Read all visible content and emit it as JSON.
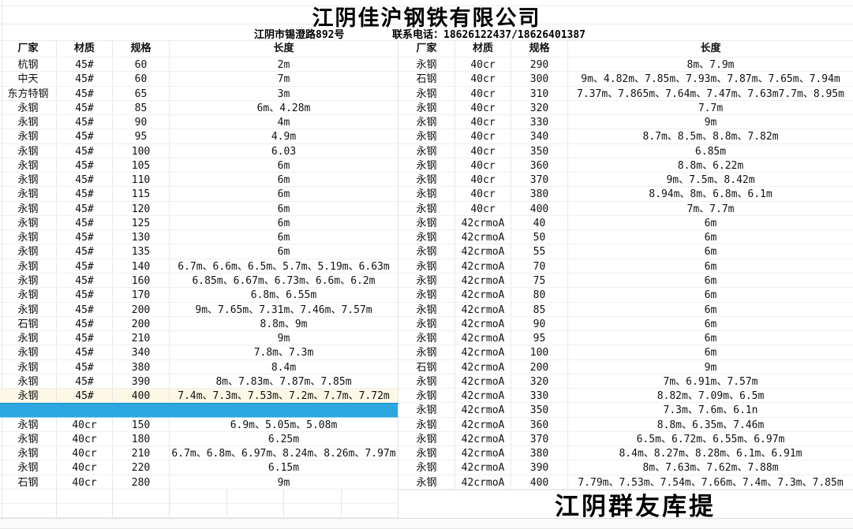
{
  "header": {
    "title": "江阴佳沪钢铁有限公司",
    "address": "江阴市锡澄路892号",
    "phone": "联系电话：18626122437/18626401387"
  },
  "columns": [
    "厂家",
    "材质",
    "规格",
    "长度"
  ],
  "colors": {
    "blue_highlight": "#2AA7DF",
    "cream_highlight": "#FDF7E6"
  },
  "left_table": {
    "row_styles": {
      "23": "cream",
      "24": "blue"
    },
    "footer_empty_rows": 2,
    "rows": [
      [
        "杭钢",
        "45#",
        "60",
        "2m"
      ],
      [
        "中天",
        "45#",
        "60",
        "7m"
      ],
      [
        "东方特钢",
        "45#",
        "65",
        "3m"
      ],
      [
        "永钢",
        "45#",
        "85",
        "6m、4.28m"
      ],
      [
        "永钢",
        "45#",
        "90",
        "4m"
      ],
      [
        "永钢",
        "45#",
        "95",
        "4.9m"
      ],
      [
        "永钢",
        "45#",
        "100",
        "6.03"
      ],
      [
        "永钢",
        "45#",
        "105",
        "6m"
      ],
      [
        "永钢",
        "45#",
        "110",
        "6m"
      ],
      [
        "永钢",
        "45#",
        "115",
        "6m"
      ],
      [
        "永钢",
        "45#",
        "120",
        "6m"
      ],
      [
        "永钢",
        "45#",
        "125",
        "6m"
      ],
      [
        "永钢",
        "45#",
        "130",
        "6m"
      ],
      [
        "永钢",
        "45#",
        "135",
        "6m"
      ],
      [
        "永钢",
        "45#",
        "140",
        "6.7m、6.6m、6.5m、5.7m、5.19m、6.63m"
      ],
      [
        "永钢",
        "45#",
        "160",
        "6.85m、6.67m、6.73m、6.6m、6.2m"
      ],
      [
        "永钢",
        "45#",
        "170",
        "6.8m、6.55m"
      ],
      [
        "永钢",
        "45#",
        "200",
        "9m、7.65m、7.31m、7.46m、7.57m"
      ],
      [
        "石钢",
        "45#",
        "200",
        "8.8m、9m"
      ],
      [
        "永钢",
        "45#",
        "210",
        "9m"
      ],
      [
        "永钢",
        "45#",
        "340",
        "7.8m、7.3m"
      ],
      [
        "永钢",
        "45#",
        "380",
        "8.4m"
      ],
      [
        "永钢",
        "45#",
        "390",
        "8m、7.83m、7.87m、7.85m"
      ],
      [
        "永钢",
        "45#",
        "400",
        "7.4m、7.3m、7.53m、7.2m、7.7m、7.72m"
      ],
      [
        "",
        "",
        "",
        ""
      ],
      [
        "永钢",
        "40cr",
        "150",
        "6.9m、5.05m、5.08m"
      ],
      [
        "永钢",
        "40cr",
        "180",
        "6.25m"
      ],
      [
        "永钢",
        "40cr",
        "210",
        "6.7m、6.8m、6.97m、8.24m、8.26m、7.97m"
      ],
      [
        "永钢",
        "40cr",
        "220",
        "6.15m"
      ],
      [
        "石钢",
        "40cr",
        "280",
        "9m"
      ]
    ]
  },
  "right_table": {
    "rows": [
      [
        "永钢",
        "40cr",
        "290",
        "8m、7.9m"
      ],
      [
        "石钢",
        "40cr",
        "300",
        "9m、4.82m、7.85m、7.93m、7.87m、7.65m、7.94m"
      ],
      [
        "永钢",
        "40cr",
        "310",
        "7.37m、7.865m、7.64m、7.47m、7.63m7.7m、8.95m"
      ],
      [
        "永钢",
        "40cr",
        "320",
        "7.7m"
      ],
      [
        "永钢",
        "40cr",
        "330",
        "9m"
      ],
      [
        "永钢",
        "40cr",
        "340",
        "8.7m、8.5m、8.8m、7.82m"
      ],
      [
        "永钢",
        "40cr",
        "350",
        "6.85m"
      ],
      [
        "永钢",
        "40cr",
        "360",
        "8.8m、6.22m"
      ],
      [
        "永钢",
        "40cr",
        "370",
        "9m、7.5m、8.42m"
      ],
      [
        "永钢",
        "40cr",
        "380",
        "8.94m、8m、6.8m、6.1m"
      ],
      [
        "永钢",
        "40cr",
        "400",
        "7m、7.7m"
      ],
      [
        "永钢",
        "42crmoA",
        "40",
        "6m"
      ],
      [
        "永钢",
        "42crmoA",
        "50",
        "6m"
      ],
      [
        "永钢",
        "42crmoA",
        "55",
        "6m"
      ],
      [
        "永钢",
        "42crmoA",
        "70",
        "6m"
      ],
      [
        "永钢",
        "42crmoA",
        "75",
        "6m"
      ],
      [
        "永钢",
        "42crmoA",
        "80",
        "6m"
      ],
      [
        "永钢",
        "42crmoA",
        "85",
        "6m"
      ],
      [
        "永钢",
        "42crmoA",
        "90",
        "6m"
      ],
      [
        "永钢",
        "42crmoA",
        "95",
        "6m"
      ],
      [
        "永钢",
        "42crmoA",
        "100",
        "6m"
      ],
      [
        "石钢",
        "42crmoA",
        "200",
        "9m"
      ],
      [
        "永钢",
        "42crmoA",
        "320",
        "7m、6.91m、7.57m"
      ],
      [
        "永钢",
        "42crmoA",
        "330",
        "8.82m、7.09m、6.5m"
      ],
      [
        "永钢",
        "42crmoA",
        "350",
        "7.3m、7.6m、6.1n"
      ],
      [
        "永钢",
        "42crmoA",
        "360",
        "8.8m、6.35m、7.46m"
      ],
      [
        "永钢",
        "42crmoA",
        "370",
        "6.5m、6.72m、6.55m、6.97m"
      ],
      [
        "永钢",
        "42crmoA",
        "380",
        "8.4m、8.27m、8.28m、6.1m、6.91m"
      ],
      [
        "永钢",
        "42crmoA",
        "390",
        "8m、7.63m、7.62m、7.88m"
      ],
      [
        "永钢",
        "42crmoA",
        "400",
        "7.79m、7.53m、7.54m、7.66m、7.4m、7.3m、7.85m"
      ]
    ]
  },
  "footer": {
    "brand": "江阴群友库提"
  }
}
